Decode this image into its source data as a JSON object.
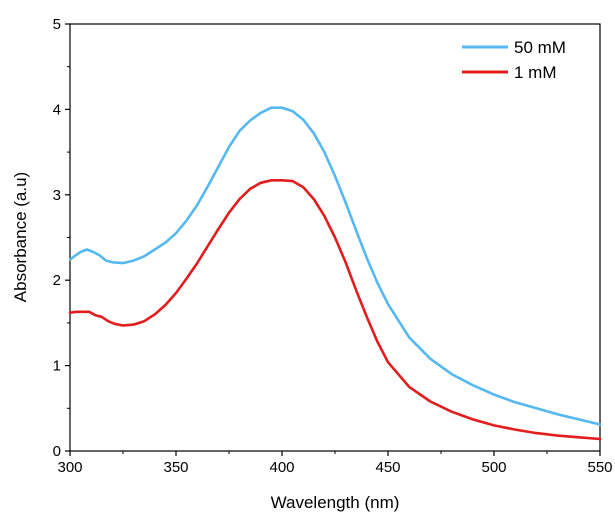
{
  "chart_data": {
    "type": "line",
    "title": "",
    "xlabel": "Wavelength (nm)",
    "ylabel": "Absorbance (a.u)",
    "xlim": [
      300,
      550
    ],
    "ylim": [
      0,
      5
    ],
    "xticks": [
      300,
      350,
      400,
      450,
      500,
      550
    ],
    "yticks": [
      0,
      1,
      2,
      3,
      4,
      5
    ],
    "grid": false,
    "legend_position": "top-right",
    "series": [
      {
        "name": "50 mM",
        "color": "#55b8f0",
        "x": [
          300,
          302,
          305,
          308,
          311,
          314,
          317,
          320,
          325,
          330,
          335,
          340,
          345,
          350,
          355,
          360,
          365,
          370,
          375,
          380,
          385,
          390,
          395,
          400,
          405,
          410,
          415,
          420,
          425,
          430,
          435,
          440,
          445,
          450,
          460,
          470,
          480,
          490,
          500,
          510,
          520,
          530,
          540,
          550
        ],
        "y": [
          2.24,
          2.28,
          2.33,
          2.36,
          2.33,
          2.29,
          2.23,
          2.21,
          2.2,
          2.23,
          2.28,
          2.36,
          2.44,
          2.55,
          2.7,
          2.88,
          3.1,
          3.33,
          3.56,
          3.75,
          3.87,
          3.96,
          4.02,
          4.02,
          3.98,
          3.88,
          3.72,
          3.5,
          3.22,
          2.91,
          2.58,
          2.26,
          1.97,
          1.72,
          1.33,
          1.08,
          0.9,
          0.77,
          0.66,
          0.57,
          0.5,
          0.43,
          0.37,
          0.31
        ]
      },
      {
        "name": "1 mM",
        "color": "#e31d1d",
        "x": [
          300,
          303,
          306,
          309,
          312,
          315,
          318,
          321,
          325,
          330,
          335,
          340,
          345,
          350,
          355,
          360,
          365,
          370,
          375,
          380,
          385,
          390,
          395,
          400,
          405,
          410,
          415,
          420,
          425,
          430,
          435,
          440,
          445,
          450,
          460,
          470,
          480,
          490,
          500,
          510,
          520,
          530,
          540,
          550
        ],
        "y": [
          1.62,
          1.63,
          1.63,
          1.63,
          1.59,
          1.57,
          1.52,
          1.49,
          1.47,
          1.48,
          1.52,
          1.6,
          1.71,
          1.85,
          2.02,
          2.2,
          2.4,
          2.6,
          2.79,
          2.95,
          3.07,
          3.14,
          3.17,
          3.17,
          3.16,
          3.09,
          2.95,
          2.75,
          2.5,
          2.21,
          1.88,
          1.57,
          1.28,
          1.04,
          0.75,
          0.58,
          0.46,
          0.37,
          0.3,
          0.25,
          0.21,
          0.18,
          0.16,
          0.14
        ]
      }
    ]
  }
}
